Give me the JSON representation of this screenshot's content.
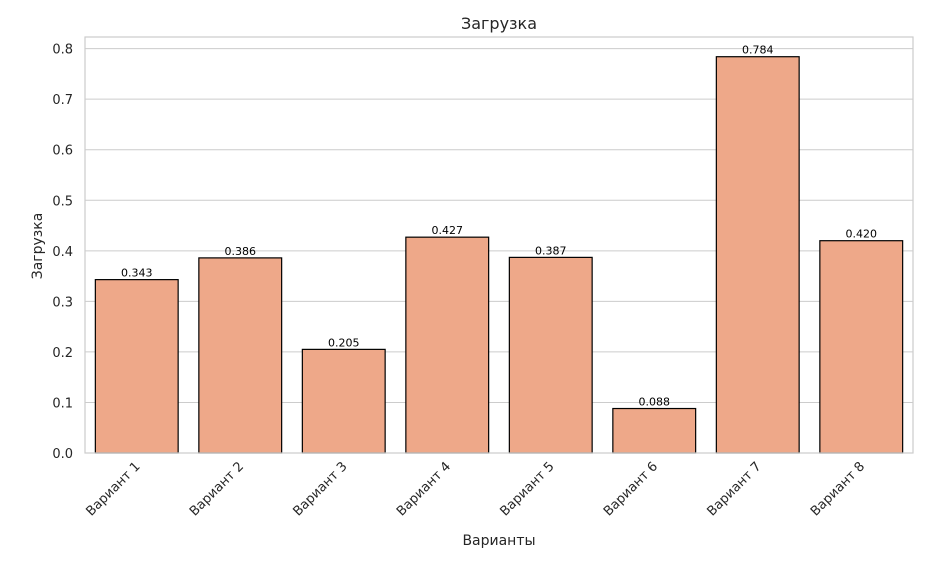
{
  "chart_data": {
    "type": "bar",
    "title": "Загрузка",
    "xlabel": "Варианты",
    "ylabel": "Загрузка",
    "categories": [
      "Вариант 1",
      "Вариант 2",
      "Вариант 3",
      "Вариант 4",
      "Вариант 5",
      "Вариант 6",
      "Вариант 7",
      "Вариант 8"
    ],
    "values": [
      0.343,
      0.386,
      0.205,
      0.427,
      0.387,
      0.088,
      0.784,
      0.42
    ],
    "data_labels": [
      "0.343",
      "0.386",
      "0.205",
      "0.427",
      "0.387",
      "0.088",
      "0.784",
      "0.420"
    ],
    "yticks": [
      0.0,
      0.1,
      0.2,
      0.3,
      0.4,
      0.5,
      0.6,
      0.7,
      0.8
    ],
    "ytick_labels": [
      "0.0",
      "0.1",
      "0.2",
      "0.3",
      "0.4",
      "0.5",
      "0.6",
      "0.7",
      "0.8"
    ],
    "ylim": [
      0,
      0.823
    ],
    "grid": "horizontal",
    "legend": "none",
    "colors": {
      "bar_fill": "#eea889",
      "bar_edge": "#000000",
      "grid": "#cccccc",
      "axes_frame": "#cccccc",
      "text": "#262626",
      "data_label_text": "#000000",
      "background": "#ffffff"
    }
  }
}
